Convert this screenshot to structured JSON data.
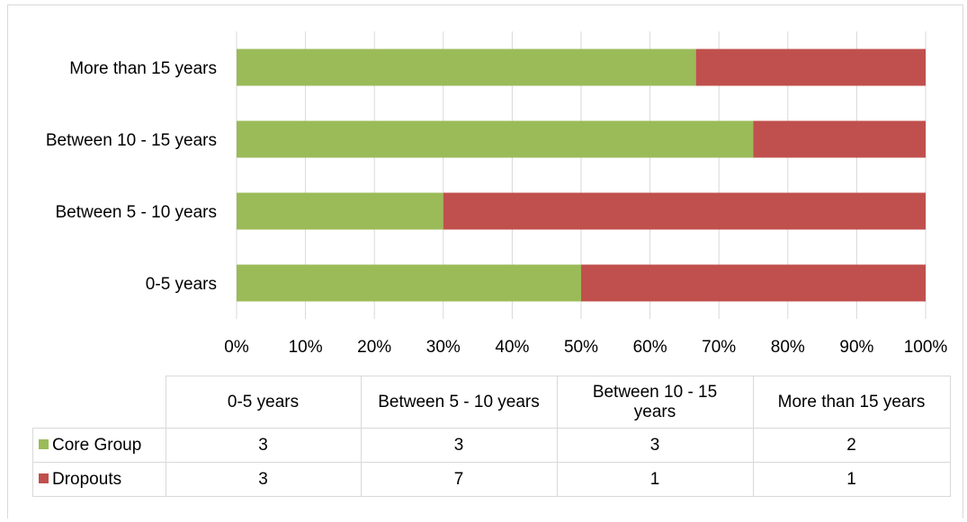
{
  "chart_data": {
    "type": "bar",
    "orientation": "horizontal",
    "stacked": "percent",
    "categories": [
      "0-5 years",
      "Between 5 - 10 years",
      "Between 10 - 15 years",
      "More than 15 years"
    ],
    "series": [
      {
        "name": "Core Group",
        "values": [
          3,
          3,
          3,
          2
        ],
        "color": "#9bbb59"
      },
      {
        "name": "Dropouts",
        "values": [
          3,
          7,
          1,
          1
        ],
        "color": "#c0504d"
      }
    ],
    "xlim": [
      0,
      100
    ],
    "x_ticks": [
      "0%",
      "10%",
      "20%",
      "30%",
      "40%",
      "50%",
      "60%",
      "70%",
      "80%",
      "90%",
      "100%"
    ],
    "grid": true,
    "legend": "data-table",
    "data_table": {
      "headers": [
        "0-5 years",
        "Between 5 - 10 years",
        "Between 10 - 15 years",
        "More than 15 years"
      ],
      "rows": [
        {
          "label": "Core Group",
          "values": [
            "3",
            "3",
            "3",
            "2"
          ]
        },
        {
          "label": "Dropouts",
          "values": [
            "3",
            "7",
            "1",
            "1"
          ]
        }
      ]
    }
  }
}
